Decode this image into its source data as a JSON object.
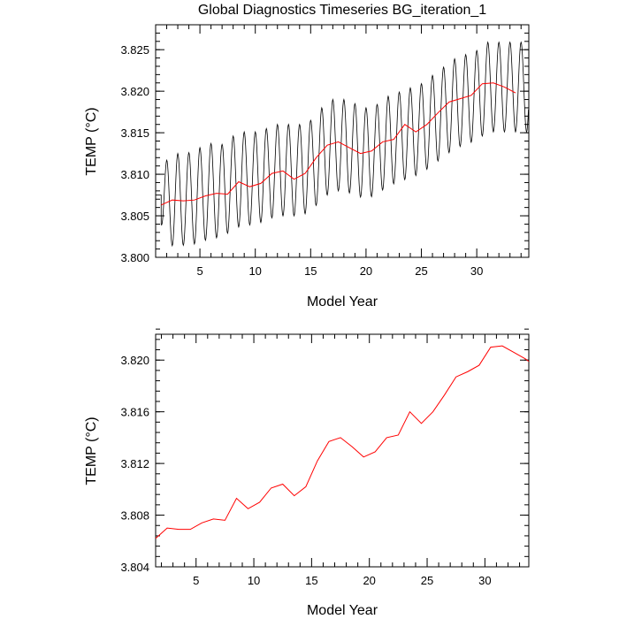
{
  "title": "Global Diagnostics Timeseries BG_iteration_1",
  "colors": {
    "monthly_line": "#000000",
    "annual_line": "#ff0000",
    "axis": "#000000",
    "background": "#ffffff"
  },
  "chart_data": [
    {
      "type": "line",
      "title": "Global Diagnostics Timeseries BG_iteration_1",
      "xlabel": "Model Year",
      "ylabel": "TEMP (°C)",
      "xlim": [
        1,
        34.7
      ],
      "ylim": [
        3.8,
        3.828
      ],
      "xticks": [
        5,
        10,
        15,
        20,
        25,
        30
      ],
      "yticks": [
        3.8,
        3.805,
        3.81,
        3.815,
        3.82,
        3.825
      ],
      "ytick_labels": [
        "3.800",
        "3.805",
        "3.810",
        "3.815",
        "3.820",
        "3.825"
      ],
      "grid": false,
      "series": [
        {
          "key": "monthly",
          "color": "#000000",
          "cycle_start": 1.0,
          "start_value": 3.8075,
          "flat_until": 1.5,
          "x": [
            1.5,
            2.0,
            3.0,
            4.0,
            5.0,
            6.0,
            7.0,
            8.0,
            9.0,
            10.0,
            11.0,
            12.0,
            13.0,
            14.0,
            15.0,
            16.0,
            17.0,
            18.0,
            19.0,
            20.0,
            21.0,
            22.0,
            23.0,
            24.0,
            25.0,
            26.0,
            27.0,
            28.0,
            29.0,
            30.0,
            31.0,
            32.0,
            33.0,
            34.0,
            34.7
          ],
          "mean": [
            3.8075,
            3.8065,
            3.807,
            3.807,
            3.8075,
            3.808,
            3.808,
            3.809,
            3.8095,
            3.8095,
            3.81,
            3.8105,
            3.8105,
            3.8105,
            3.811,
            3.8125,
            3.8135,
            3.8135,
            3.813,
            3.8125,
            3.813,
            3.814,
            3.8145,
            3.815,
            3.8155,
            3.8165,
            3.8175,
            3.8185,
            3.819,
            3.8195,
            3.8205,
            3.8205,
            3.8205,
            3.8205,
            3.8205
          ],
          "amplitude": [
            0.0035,
            0.0052,
            0.0055,
            0.0056,
            0.0057,
            0.0057,
            0.0056,
            0.0056,
            0.0056,
            0.0056,
            0.0055,
            0.0055,
            0.0055,
            0.0055,
            0.0055,
            0.0055,
            0.0055,
            0.0055,
            0.0055,
            0.0055,
            0.0054,
            0.0054,
            0.0054,
            0.0054,
            0.0054,
            0.0054,
            0.0054,
            0.0054,
            0.0054,
            0.0054,
            0.0054,
            0.0054,
            0.0054,
            0.0054,
            0.0054
          ]
        },
        {
          "key": "annual",
          "color": "#ff0000",
          "x": [
            1.5,
            2.5,
            3.5,
            4.5,
            5.5,
            6.5,
            7.5,
            8.5,
            9.5,
            10.5,
            11.5,
            12.5,
            13.5,
            14.5,
            15.5,
            16.5,
            17.5,
            18.5,
            19.5,
            20.5,
            21.5,
            22.5,
            23.5,
            24.5,
            25.5,
            26.5,
            27.5,
            28.5,
            29.5,
            30.5,
            31.5,
            32.5,
            33.5
          ],
          "y": [
            3.8063,
            3.8069,
            3.8068,
            3.8069,
            3.8074,
            3.8077,
            3.8076,
            3.8091,
            3.8085,
            3.8089,
            3.8101,
            3.8104,
            3.8094,
            3.8101,
            3.812,
            3.8135,
            3.8139,
            3.8132,
            3.8125,
            3.8128,
            3.8139,
            3.8142,
            3.816,
            3.8151,
            3.816,
            3.8174,
            3.8187,
            3.8191,
            3.8195,
            3.8209,
            3.821,
            3.8205,
            3.8198
          ]
        }
      ]
    },
    {
      "type": "line",
      "title": "",
      "xlabel": "Model Year",
      "ylabel": "TEMP (°C)",
      "xlim": [
        1.5,
        33.8
      ],
      "ylim": [
        3.804,
        3.822
      ],
      "xticks": [
        5,
        10,
        15,
        20,
        25,
        30
      ],
      "yticks": [
        3.804,
        3.808,
        3.812,
        3.816,
        3.82
      ],
      "ytick_labels": [
        "3.804",
        "3.808",
        "3.812",
        "3.816",
        "3.820"
      ],
      "grid": false,
      "series": [
        {
          "key": "annual",
          "color": "#ff0000",
          "x": [
            1.5,
            2.5,
            3.5,
            4.5,
            5.5,
            6.5,
            7.5,
            8.5,
            9.5,
            10.5,
            11.5,
            12.5,
            13.5,
            14.5,
            15.5,
            16.5,
            17.5,
            18.5,
            19.5,
            20.5,
            21.5,
            22.5,
            23.5,
            24.5,
            25.5,
            26.5,
            27.5,
            28.5,
            29.5,
            30.5,
            31.5,
            32.5,
            33.5,
            33.8
          ],
          "y": [
            3.8062,
            3.807,
            3.8069,
            3.8069,
            3.8074,
            3.8077,
            3.8076,
            3.8093,
            3.8085,
            3.809,
            3.8101,
            3.8104,
            3.8095,
            3.8102,
            3.8122,
            3.8137,
            3.814,
            3.8133,
            3.8125,
            3.8129,
            3.814,
            3.8142,
            3.816,
            3.8151,
            3.816,
            3.8173,
            3.8187,
            3.8191,
            3.8196,
            3.821,
            3.8211,
            3.8206,
            3.8201,
            3.8199
          ]
        }
      ]
    }
  ]
}
